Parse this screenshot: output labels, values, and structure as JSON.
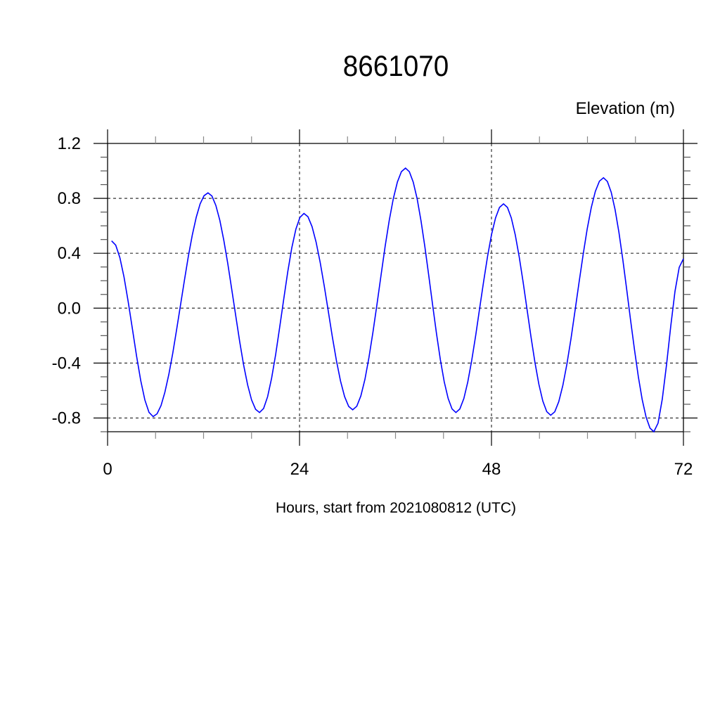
{
  "chart_data": {
    "type": "line",
    "title": "8661070",
    "ylabel": "Elevation (m)",
    "xlabel": "Hours, start from 2021080812 (UTC)",
    "xlim": [
      0,
      72
    ],
    "ylim": [
      -0.9,
      1.2
    ],
    "x_ticks": [
      0,
      24,
      48,
      72
    ],
    "x_tick_labels": [
      "0",
      "24",
      "48",
      "72"
    ],
    "x_minor_step": 6,
    "y_ticks": [
      -0.8,
      -0.4,
      0.0,
      0.4,
      0.8,
      1.2
    ],
    "y_tick_labels": [
      "-0.8",
      "-0.4",
      "0.0",
      "0.4",
      "0.8",
      "1.2"
    ],
    "y_minor_step": 0.1,
    "grid": true,
    "grid_style": "dashed",
    "line_color": "#0000ff",
    "series": [
      {
        "x": [
          0.5,
          5.7,
          12.55,
          19.0,
          24.55,
          30.65,
          37.25,
          43.55,
          49.5,
          55.4,
          62.0,
          68.3,
          72.0
        ],
        "y": [
          0.49,
          -0.79,
          0.84,
          -0.76,
          0.69,
          -0.74,
          1.02,
          -0.76,
          0.76,
          -0.78,
          0.95,
          -0.9,
          0.36
        ]
      }
    ]
  }
}
